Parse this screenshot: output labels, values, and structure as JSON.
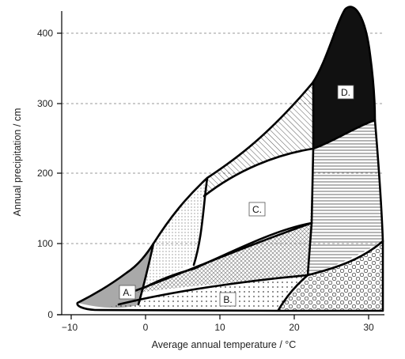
{
  "diagram": {
    "x_axis": {
      "label": "Average annual temperature / °C",
      "ticks": [
        "−10",
        "0",
        "10",
        "20",
        "30"
      ]
    },
    "y_axis": {
      "label": "Annual precipitation / cm",
      "ticks": [
        "0",
        "100",
        "200",
        "300",
        "400"
      ]
    },
    "gridlines": "dashed horizontal at each y tick",
    "regions": [
      {
        "id": "A",
        "label": "A."
      },
      {
        "id": "B",
        "label": "B."
      },
      {
        "id": "C",
        "label": "C."
      },
      {
        "id": "D",
        "label": "D."
      }
    ],
    "colors": {
      "region_A": "#a9a9a9",
      "region_D": "#111111",
      "grid": "#9a9a9a"
    }
  }
}
